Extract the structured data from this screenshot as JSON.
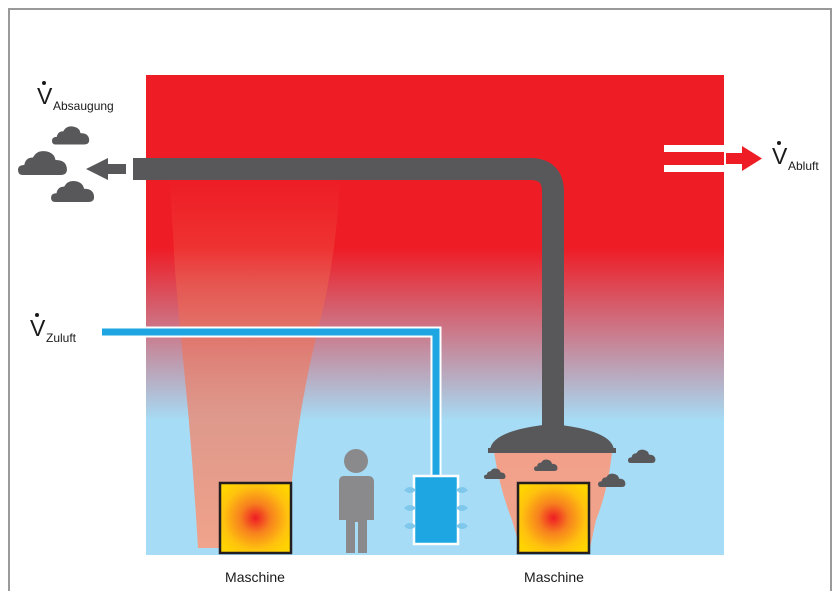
{
  "labels": {
    "absaugung_main": "V",
    "absaugung_sub": "Absaugung",
    "zuluft_main": "V",
    "zuluft_sub": "Zuluft",
    "abluft_main": "V",
    "abluft_sub": "Abluft",
    "machine_left": "Maschine",
    "machine_right": "Maschine"
  },
  "colors": {
    "hot_red": "#ee1c25",
    "cool_blue": "#a6dcf5",
    "duct_gray": "#58585a",
    "supply_blue": "#1ea6e3",
    "arrow_red": "#ee1c25",
    "cloud_gray": "#58585a",
    "person_gray": "#8a8a8c",
    "machine_yellow": "#ffd400"
  },
  "icons": {
    "exhaust_arrow": "arrow-left-icon",
    "outflow_arrow": "arrow-right-icon",
    "smoke": "cloud-icon",
    "person": "person-icon",
    "hood": "extraction-hood-icon",
    "diffuser": "air-diffuser-icon"
  }
}
